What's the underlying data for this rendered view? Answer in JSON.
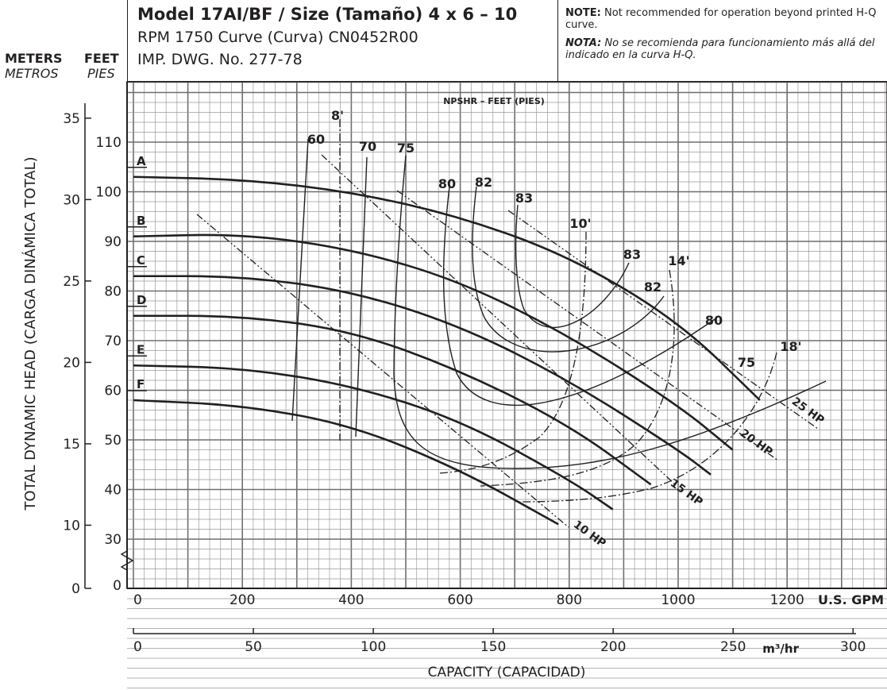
{
  "header": {
    "model_line": "Model 17AI/BF / Size (Tamaño) 4 x 6 – 10",
    "rpm_line": "RPM 1750 Curve (Curva) CN0452R00",
    "imp_line": "IMP. DWG. No. 277-78",
    "note_en_label": "NOTE:",
    "note_en": "Not recommended for operation beyond printed H-Q curve.",
    "note_es_label": "NOTA:",
    "note_es": "No se recomienda para funcionamiento más allá del indicado en la curva H-Q.",
    "units_meters": "METERS",
    "units_feet": "FEET",
    "units_metros": "METROS",
    "units_pies": "PIES"
  },
  "chart_data": {
    "type": "line",
    "title": "Model 17AI/BF / Size (Tamaño) 4 x 6 – 10",
    "xlabel": "CAPACITY (CAPACIDAD)",
    "ylabel": "TOTAL DYNAMIC HEAD (CARGA DINÁMICA TOTAL)",
    "x_unit_gpm": "U.S. GPM",
    "x_unit_m3": "m³/hr",
    "xlim_gpm": [
      0,
      1260
    ],
    "ylim_ft": [
      0,
      120
    ],
    "x_ticks_gpm": [
      0,
      200,
      400,
      600,
      800,
      1000,
      1200
    ],
    "x_ticks_m3": [
      0,
      50,
      100,
      150,
      200,
      250,
      300
    ],
    "y_ticks_ft": [
      30,
      40,
      50,
      60,
      70,
      80,
      90,
      100,
      110
    ],
    "y_ticks_m": [
      0,
      10,
      15,
      20,
      25,
      30,
      35
    ],
    "y_zero_ft_label": "0",
    "grid": true,
    "npsh_title": "NPSHR – FEET (PIES)",
    "series": [
      {
        "name": "A",
        "x": [
          0,
          200,
          400,
          600,
          800,
          1000,
          1150
        ],
        "y": [
          103,
          102.5,
          100,
          95,
          87,
          74,
          58
        ]
      },
      {
        "name": "B",
        "x": [
          0,
          200,
          400,
          600,
          800,
          1000,
          1100
        ],
        "y": [
          91,
          91.5,
          88.5,
          82,
          71,
          57,
          48
        ]
      },
      {
        "name": "C",
        "x": [
          0,
          200,
          400,
          600,
          800,
          1000,
          1060
        ],
        "y": [
          83,
          83,
          80,
          73,
          62,
          48,
          43
        ]
      },
      {
        "name": "D",
        "x": [
          0,
          200,
          400,
          600,
          800,
          950
        ],
        "y": [
          75,
          75,
          72,
          64,
          53,
          41
        ]
      },
      {
        "name": "E",
        "x": [
          0,
          200,
          400,
          600,
          800,
          880
        ],
        "y": [
          65,
          64.5,
          61,
          54,
          42,
          36
        ]
      },
      {
        "name": "F",
        "x": [
          0,
          200,
          400,
          600,
          780
        ],
        "y": [
          58,
          57,
          53,
          44,
          33
        ]
      }
    ],
    "efficiency_labels": [
      "60",
      "70",
      "75",
      "80",
      "82",
      "83",
      "83",
      "82",
      "80",
      "75"
    ],
    "npsh_labels": [
      "8'",
      "10'",
      "14'",
      "18'"
    ],
    "hp_labels": [
      "10 HP",
      "15 HP",
      "20 HP",
      "25 HP"
    ]
  }
}
